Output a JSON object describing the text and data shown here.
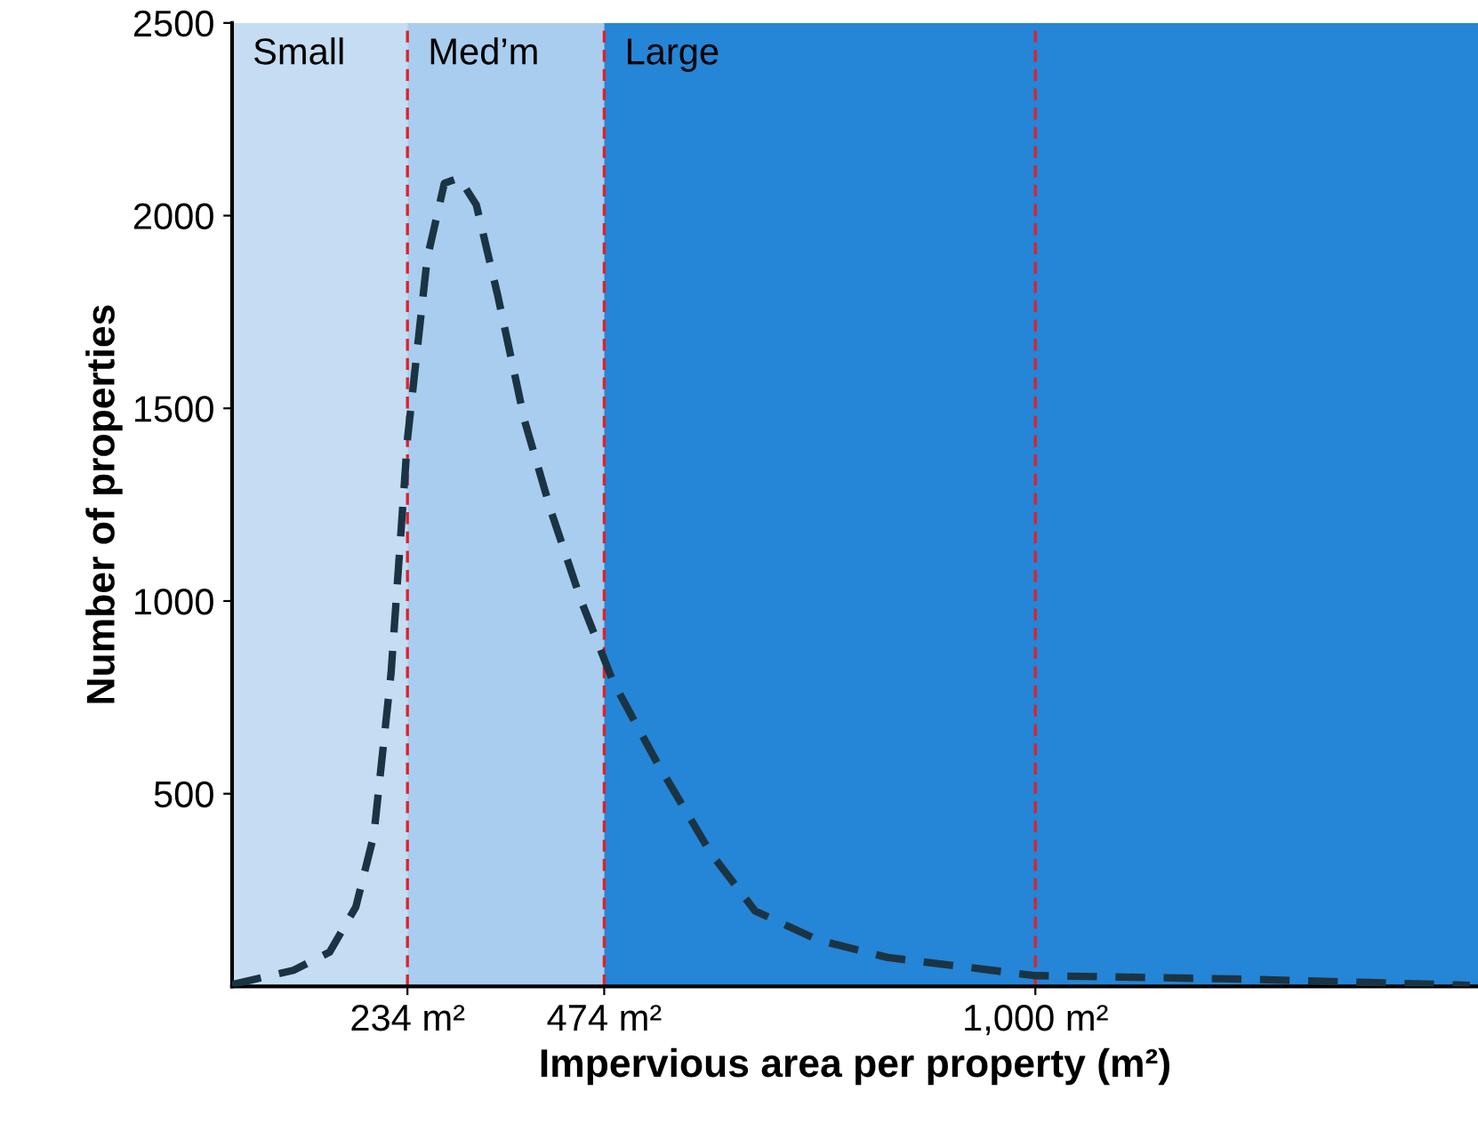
{
  "chart_data": {
    "type": "line",
    "xlabel": "Impervious area per property (m²)",
    "ylabel": "Number of properties",
    "x": [
      20,
      95,
      139,
      171,
      193,
      214,
      234,
      258,
      279,
      297,
      318,
      344,
      377,
      409,
      446,
      485,
      539,
      604,
      658,
      734,
      820,
      1000,
      1253,
      1530
    ],
    "series": [
      {
        "color": "#1b3443",
        "values": [
          5,
          42,
          89,
          206,
          393,
          813,
          1420,
          1888,
          2084,
          2098,
          2028,
          1794,
          1467,
          1234,
          1000,
          790,
          579,
          346,
          196,
          121,
          75,
          28,
          19,
          3
        ]
      }
    ],
    "line_style": "dashed",
    "marker": "none",
    "xlim": [
      20,
      1540
    ],
    "xticks": [
      {
        "value": 234,
        "label": "234 m²"
      },
      {
        "value": 474,
        "label": "474 m²"
      },
      {
        "value": 1000,
        "label": "1,000 m²"
      }
    ],
    "ylim": [
      0,
      2500
    ],
    "yticks": [
      500,
      1000,
      1500,
      2000,
      2500
    ],
    "bands": [
      {
        "axis": "x",
        "from": 20,
        "to": 234,
        "label": "Small",
        "color": "#c5ddf2"
      },
      {
        "axis": "x",
        "from": 234,
        "to": 474,
        "label": "Med’m",
        "color": "#a9cdee"
      },
      {
        "axis": "x",
        "from": 474,
        "to": 1540,
        "label": "Large",
        "color": "#2585d6"
      }
    ],
    "ref_lines": [
      {
        "axis": "x",
        "value": 234,
        "color": "#e0202a",
        "line_style": "dashed"
      },
      {
        "axis": "x",
        "value": 474,
        "color": "#e0202a",
        "line_style": "dashed"
      },
      {
        "axis": "x",
        "value": 1000,
        "color": "#e0202a",
        "line_style": "dashed"
      }
    ],
    "grid": false
  }
}
